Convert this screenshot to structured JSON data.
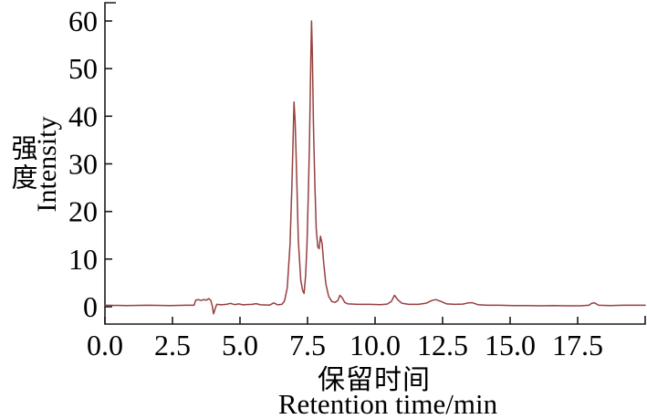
{
  "chart_data": {
    "type": "line",
    "title": "",
    "ylabel_zh": "强度",
    "ylabel_en": "Intensity",
    "xlabel_zh": "保留时间",
    "xlabel_en": "Retention time/min",
    "xlim": [
      0,
      20
    ],
    "ylim": [
      -3.6,
      63.8
    ],
    "x_tick_values": [
      0,
      2.5,
      5,
      7.5,
      10,
      12.5,
      15,
      17.5
    ],
    "x_tick_labels": [
      "0.0",
      "2.5",
      "5.0",
      "7.5",
      "10.0",
      "12.5",
      "15.0",
      "17.5"
    ],
    "y_tick_values": [
      0,
      10,
      20,
      30,
      40,
      50,
      60
    ],
    "y_tick_labels": [
      "0",
      "10",
      "20",
      "30",
      "40",
      "50",
      "60"
    ],
    "grid": false,
    "legend": "none",
    "line_color": "#973f3f",
    "axis_color": "#1a1a1a",
    "peaks_of_interest": [
      {
        "t": 7.0,
        "v": 43
      },
      {
        "t": 7.65,
        "v": 60
      },
      {
        "t": 8.0,
        "v": 14.8
      }
    ],
    "series": [
      {
        "name": "chromatogram",
        "points": [
          [
            0,
            0.3
          ],
          [
            0.8,
            0.25
          ],
          [
            1.6,
            0.3
          ],
          [
            2.4,
            0.25
          ],
          [
            3.0,
            0.3
          ],
          [
            3.3,
            0.3
          ],
          [
            3.36,
            1.4
          ],
          [
            3.46,
            1.5
          ],
          [
            3.56,
            1.3
          ],
          [
            3.66,
            1.5
          ],
          [
            3.76,
            1.4
          ],
          [
            3.84,
            1.7
          ],
          [
            3.92,
            1.3
          ],
          [
            3.97,
            0.3
          ],
          [
            4.02,
            -1.5
          ],
          [
            4.08,
            -0.4
          ],
          [
            4.14,
            0.5
          ],
          [
            4.3,
            0.4
          ],
          [
            4.5,
            0.5
          ],
          [
            4.65,
            0.7
          ],
          [
            4.8,
            0.45
          ],
          [
            4.95,
            0.6
          ],
          [
            5.1,
            0.4
          ],
          [
            5.45,
            0.5
          ],
          [
            5.6,
            0.65
          ],
          [
            5.75,
            0.4
          ],
          [
            6.1,
            0.35
          ],
          [
            6.25,
            0.8
          ],
          [
            6.4,
            0.4
          ],
          [
            6.55,
            0.5
          ],
          [
            6.65,
            1.2
          ],
          [
            6.75,
            4
          ],
          [
            6.85,
            13
          ],
          [
            6.92,
            25
          ],
          [
            6.97,
            36
          ],
          [
            7.0,
            43
          ],
          [
            7.04,
            39
          ],
          [
            7.09,
            29
          ],
          [
            7.16,
            14
          ],
          [
            7.25,
            5.5
          ],
          [
            7.32,
            3.4
          ],
          [
            7.37,
            2.8
          ],
          [
            7.43,
            6.5
          ],
          [
            7.48,
            13
          ],
          [
            7.53,
            24
          ],
          [
            7.57,
            34
          ],
          [
            7.6,
            45
          ],
          [
            7.62,
            52
          ],
          [
            7.65,
            60
          ],
          [
            7.68,
            53
          ],
          [
            7.72,
            38
          ],
          [
            7.77,
            26
          ],
          [
            7.82,
            16.5
          ],
          [
            7.88,
            12.6
          ],
          [
            7.93,
            12.2
          ],
          [
            7.98,
            14.8
          ],
          [
            8.04,
            13.2
          ],
          [
            8.1,
            9
          ],
          [
            8.18,
            4.8
          ],
          [
            8.28,
            2.2
          ],
          [
            8.4,
            1.1
          ],
          [
            8.52,
            0.9
          ],
          [
            8.62,
            1.3
          ],
          [
            8.7,
            2.4
          ],
          [
            8.78,
            1.9
          ],
          [
            8.88,
            0.9
          ],
          [
            9.0,
            0.6
          ],
          [
            9.35,
            0.5
          ],
          [
            9.8,
            0.5
          ],
          [
            10.2,
            0.45
          ],
          [
            10.45,
            0.55
          ],
          [
            10.6,
            1.1
          ],
          [
            10.72,
            2.4
          ],
          [
            10.85,
            1.4
          ],
          [
            11.0,
            0.7
          ],
          [
            11.25,
            0.5
          ],
          [
            11.6,
            0.5
          ],
          [
            11.9,
            0.75
          ],
          [
            12.1,
            1.3
          ],
          [
            12.25,
            1.5
          ],
          [
            12.45,
            1.1
          ],
          [
            12.65,
            0.6
          ],
          [
            12.95,
            0.5
          ],
          [
            13.25,
            0.55
          ],
          [
            13.45,
            0.8
          ],
          [
            13.6,
            0.85
          ],
          [
            13.8,
            0.45
          ],
          [
            14.15,
            0.3
          ],
          [
            14.6,
            0.3
          ],
          [
            15.1,
            0.25
          ],
          [
            15.6,
            0.25
          ],
          [
            16.1,
            0.2
          ],
          [
            16.6,
            0.25
          ],
          [
            17.1,
            0.2
          ],
          [
            17.6,
            0.2
          ],
          [
            17.92,
            0.3
          ],
          [
            18.02,
            0.7
          ],
          [
            18.12,
            0.8
          ],
          [
            18.28,
            0.3
          ],
          [
            18.7,
            0.25
          ],
          [
            19.2,
            0.3
          ],
          [
            20,
            0.3
          ]
        ]
      }
    ]
  }
}
